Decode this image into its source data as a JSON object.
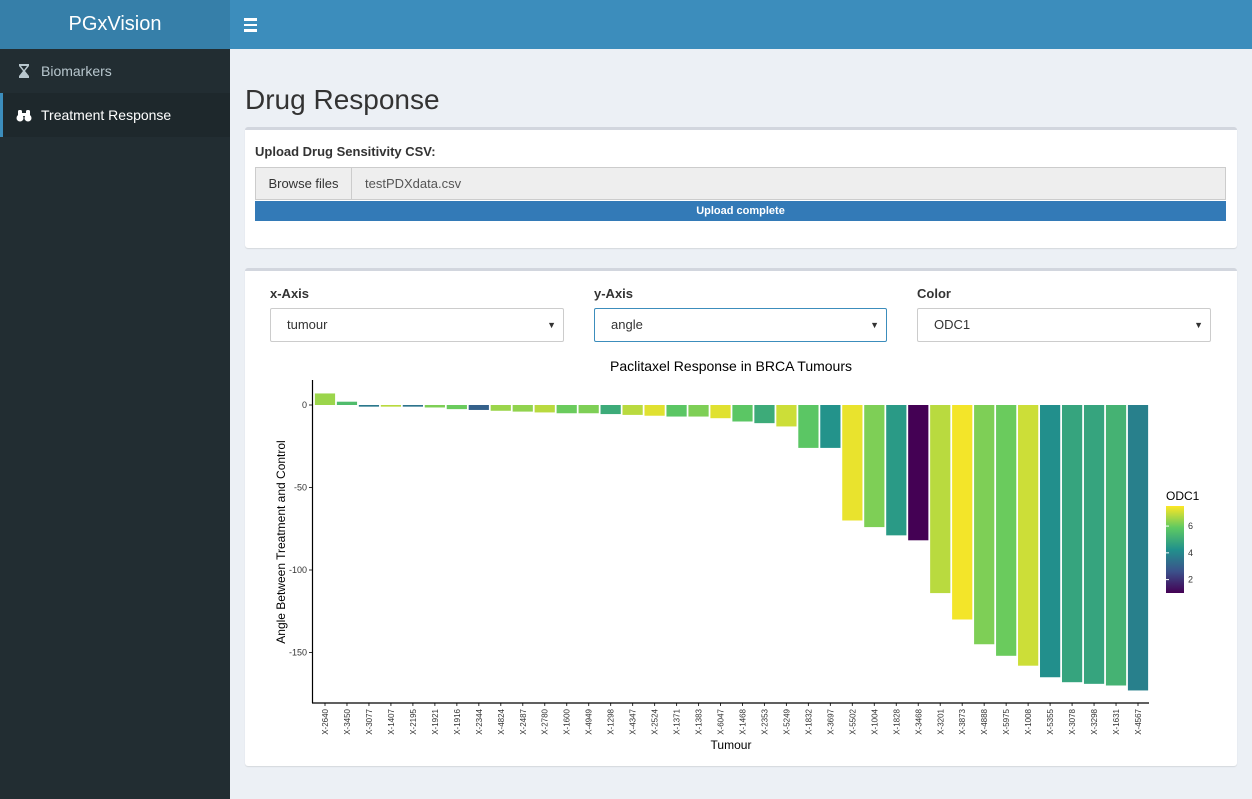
{
  "app": {
    "title": "PGxVision"
  },
  "sidebar": {
    "items": [
      {
        "label": "Biomarkers",
        "icon": "hourglass-icon"
      },
      {
        "label": "Treatment Response",
        "icon": "binoculars-icon"
      }
    ]
  },
  "page": {
    "title": "Drug Response"
  },
  "upload": {
    "label": "Upload Drug Sensitivity CSV:",
    "browse_label": "Browse files",
    "filename": "testPDXdata.csv",
    "progress_text": "Upload complete",
    "progress_value": 100
  },
  "controls": {
    "x_axis": {
      "label": "x-Axis",
      "value": "tumour"
    },
    "y_axis": {
      "label": "y-Axis",
      "value": "angle"
    },
    "color": {
      "label": "Color",
      "value": "ODC1"
    }
  },
  "chart_data": {
    "type": "bar",
    "title": "Paclitaxel Response in BRCA Tumours",
    "xlabel": "Tumour",
    "ylabel": "Angle Between Treatment and Control",
    "ylim": [
      -175,
      10
    ],
    "yticks": [
      0,
      -50,
      -100,
      -150
    ],
    "categories": [
      "X-2640",
      "X-3450",
      "X-3077",
      "X-1407",
      "X-2195",
      "X-1921",
      "X-1916",
      "X-2344",
      "X-4824",
      "X-2487",
      "X-2780",
      "X-1600",
      "X-4949",
      "X-1298",
      "X-4347",
      "X-2524",
      "X-1371",
      "X-1383",
      "X-6047",
      "X-1468",
      "X-2353",
      "X-5249",
      "X-1832",
      "X-3697",
      "X-5502",
      "X-1004",
      "X-1828",
      "X-3468",
      "X-3201",
      "X-3873",
      "X-4888",
      "X-5975",
      "X-1008",
      "X-5355",
      "X-3078",
      "X-3298",
      "X-1631",
      "X-4567"
    ],
    "values": [
      7,
      2,
      -1,
      -1,
      -1,
      -1.5,
      -2.5,
      -3,
      -3.5,
      -4,
      -4.5,
      -5,
      -5,
      -5.5,
      -6,
      -6.5,
      -7,
      -7,
      -8,
      -10,
      -11,
      -13,
      -26,
      -26,
      -70,
      -74,
      -79,
      -82,
      -114,
      -130,
      -145,
      -152,
      -158,
      -165,
      -168,
      -169,
      -170,
      -173
    ],
    "color_values": [
      6.5,
      5.5,
      3.6,
      6.8,
      3.5,
      6.2,
      6.0,
      3.0,
      6.5,
      6.4,
      6.8,
      6.0,
      6.2,
      5.0,
      6.8,
      7.2,
      5.8,
      6.2,
      7.2,
      5.8,
      5.0,
      7.0,
      5.8,
      4.3,
      7.3,
      6.2,
      4.5,
      1.0,
      6.8,
      7.4,
      6.2,
      6.0,
      7.0,
      4.2,
      4.8,
      4.8,
      5.2,
      3.8
    ],
    "legend": {
      "title": "ODC1",
      "ticks": [
        2,
        4,
        6
      ],
      "range": [
        1,
        7.5
      ],
      "position": "right"
    }
  }
}
